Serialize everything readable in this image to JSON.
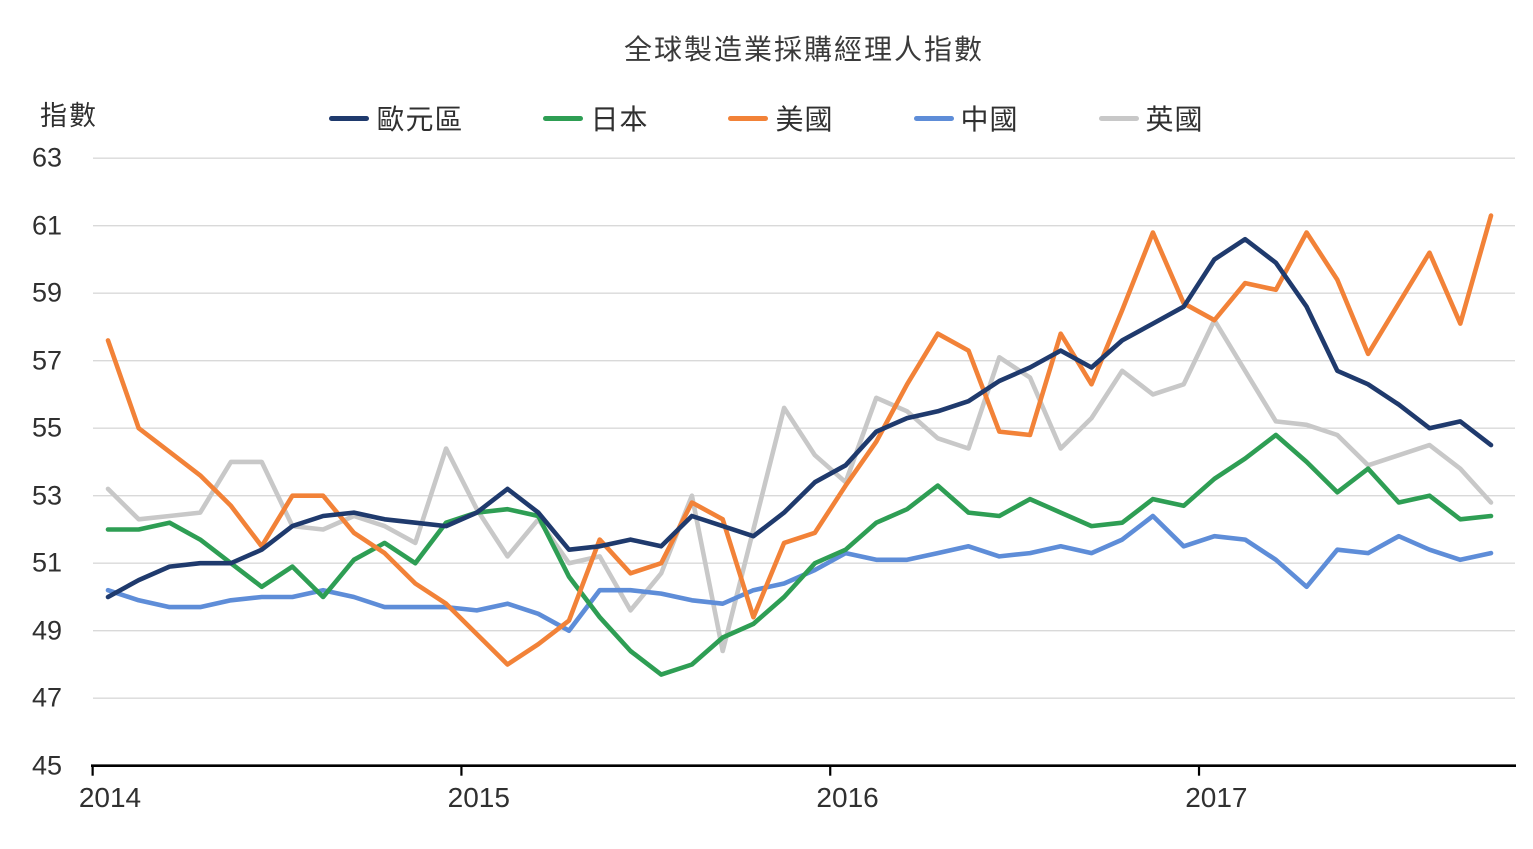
{
  "chart": {
    "title": "全球製造業採購經理人指數",
    "y_axis_title": "指數",
    "y_ticks": [
      63,
      61,
      59,
      57,
      55,
      53,
      51,
      49,
      47,
      45
    ],
    "x_ticks": [
      "2014",
      "2015",
      "2016",
      "2017"
    ],
    "colors": {
      "eurozone": "#1f3a6d",
      "japan": "#2e9e54",
      "us": "#f28238",
      "china": "#5e8dd8",
      "uk": "#c8c8c8",
      "gridline": "#d9d9d9",
      "axis": "#000000",
      "text": "#303030"
    }
  },
  "chart_data": {
    "type": "line",
    "title": "全球製造業採購經理人指數",
    "xlabel": "",
    "ylabel": "指數",
    "ylim": [
      45,
      63
    ],
    "grid": "horizontal",
    "legend_position": "top",
    "x": [
      "2014-01",
      "2014-02",
      "2014-03",
      "2014-04",
      "2014-05",
      "2014-06",
      "2014-07",
      "2014-08",
      "2014-09",
      "2014-10",
      "2014-11",
      "2014-12",
      "2015-01",
      "2015-02",
      "2015-03",
      "2015-04",
      "2015-05",
      "2015-06",
      "2015-07",
      "2015-08",
      "2015-09",
      "2015-10",
      "2015-11",
      "2015-12",
      "2016-01",
      "2016-02",
      "2016-03",
      "2016-04",
      "2016-05",
      "2016-06",
      "2016-07",
      "2016-08",
      "2016-09",
      "2016-10",
      "2016-11",
      "2016-12",
      "2017-01",
      "2017-02",
      "2017-03",
      "2017-04",
      "2017-05",
      "2017-06",
      "2017-07",
      "2017-08",
      "2017-09",
      "2017-10"
    ],
    "series": [
      {
        "name": "歐元區",
        "color": "#1f3a6d",
        "values": [
          50.0,
          50.5,
          50.9,
          51.0,
          51.0,
          51.4,
          52.1,
          52.4,
          52.5,
          52.3,
          52.2,
          52.1,
          52.5,
          53.2,
          52.5,
          51.4,
          51.5,
          51.7,
          51.5,
          52.4,
          52.1,
          51.8,
          52.5,
          53.4,
          53.9,
          54.9,
          55.3,
          55.5,
          55.8,
          56.4,
          56.8,
          57.3,
          56.8,
          57.6,
          58.1,
          58.6,
          60.0,
          60.6,
          59.9,
          58.6,
          56.7,
          56.3,
          55.7,
          55.0,
          55.2,
          54.5
        ]
      },
      {
        "name": "日本",
        "color": "#2e9e54",
        "values": [
          52.0,
          52.0,
          52.2,
          51.7,
          51.0,
          50.3,
          50.9,
          50.0,
          51.1,
          51.6,
          51.0,
          52.2,
          52.5,
          52.6,
          52.4,
          50.6,
          49.4,
          48.4,
          47.7,
          48.0,
          48.8,
          49.2,
          50.0,
          51.0,
          51.4,
          52.2,
          52.6,
          53.3,
          52.5,
          52.4,
          52.9,
          52.5,
          52.1,
          52.2,
          52.9,
          52.7,
          53.5,
          54.1,
          54.8,
          54.0,
          53.1,
          53.8,
          52.8,
          53.0,
          52.3,
          52.4
        ]
      },
      {
        "name": "美國",
        "color": "#f28238",
        "values": [
          57.6,
          55.0,
          54.3,
          53.6,
          52.7,
          51.5,
          53.0,
          53.0,
          51.9,
          51.3,
          50.4,
          49.8,
          48.9,
          48.0,
          48.6,
          49.3,
          51.7,
          50.7,
          51.0,
          52.8,
          52.3,
          49.4,
          51.6,
          51.9,
          53.3,
          54.6,
          56.3,
          57.8,
          57.3,
          54.9,
          54.8,
          57.8,
          56.3,
          58.5,
          60.8,
          58.7,
          58.2,
          59.3,
          59.1,
          60.8,
          59.4,
          57.2,
          58.7,
          60.2,
          58.1,
          61.3
        ]
      },
      {
        "name": "中國",
        "color": "#5e8dd8",
        "values": [
          50.2,
          49.9,
          49.7,
          49.7,
          49.9,
          50.0,
          50.0,
          50.2,
          50.0,
          49.7,
          49.7,
          49.7,
          49.6,
          49.8,
          49.5,
          49.0,
          50.2,
          50.2,
          50.1,
          49.9,
          49.8,
          50.2,
          50.4,
          50.8,
          51.3,
          51.1,
          51.1,
          51.3,
          51.5,
          51.2,
          51.3,
          51.5,
          51.3,
          51.7,
          52.4,
          51.5,
          51.8,
          51.7,
          51.1,
          50.3,
          51.4,
          51.3,
          51.8,
          51.4,
          51.1,
          51.3
        ]
      },
      {
        "name": "英國",
        "color": "#c8c8c8",
        "values": [
          53.2,
          52.3,
          52.4,
          52.5,
          54.0,
          54.0,
          52.1,
          52.0,
          52.4,
          52.1,
          51.6,
          54.4,
          52.6,
          51.2,
          52.3,
          51.0,
          51.2,
          49.6,
          50.7,
          53.0,
          48.4,
          52.0,
          55.6,
          54.2,
          53.4,
          55.9,
          55.5,
          54.7,
          54.4,
          57.1,
          56.5,
          54.4,
          55.3,
          56.7,
          56.0,
          56.3,
          58.2,
          56.7,
          55.2,
          55.1,
          54.8,
          53.9,
          54.2,
          54.5,
          53.8,
          52.8
        ]
      }
    ]
  }
}
